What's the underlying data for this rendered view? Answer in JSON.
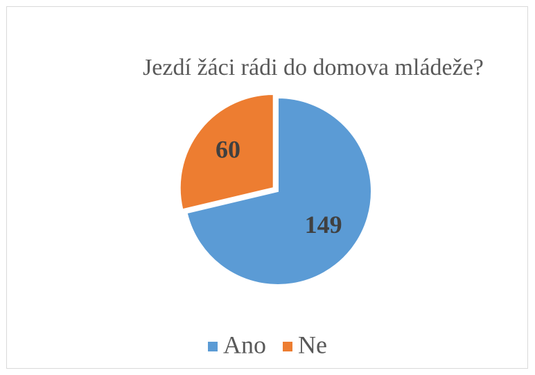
{
  "chart_data": {
    "type": "pie",
    "title": "Jezdí žáci rádi do domova mládeže?",
    "categories": [
      "Ano",
      "Ne"
    ],
    "values": [
      149,
      60
    ],
    "colors": [
      "#5b9bd5",
      "#ed7d31"
    ],
    "exploded": [
      false,
      true
    ],
    "legend": "bottom"
  }
}
